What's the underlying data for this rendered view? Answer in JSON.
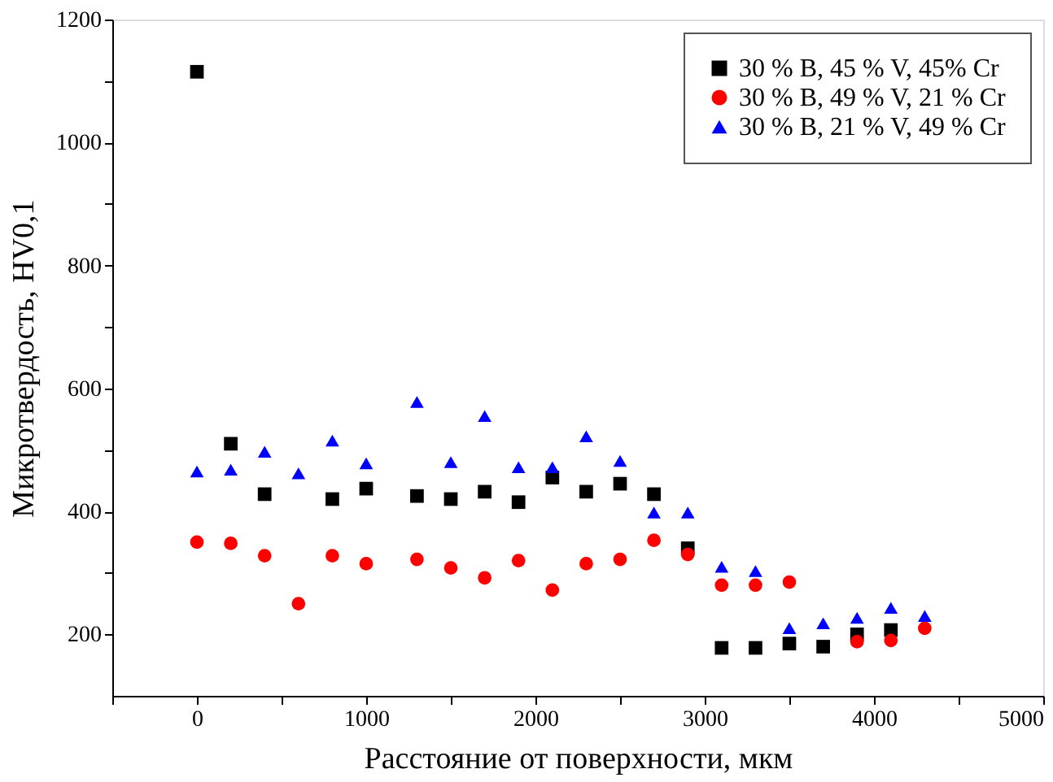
{
  "chart_data": {
    "type": "scatter",
    "xlabel": "Расстояние от поверхности, мкм",
    "ylabel": "Микротвердость, HV0,1",
    "xlim": [
      -500,
      5000
    ],
    "ylim": [
      100,
      1200
    ],
    "xticks": [
      {
        "value": -500,
        "label": null
      },
      0,
      {
        "value": 500,
        "label": null
      },
      1000,
      {
        "value": 1500,
        "label": null
      },
      2000,
      {
        "value": 2500,
        "label": null
      },
      3000,
      {
        "value": 3500,
        "label": null
      },
      4000,
      {
        "value": 4500,
        "label": null
      },
      5000
    ],
    "yticks": [
      200,
      {
        "value": 300,
        "label": null
      },
      400,
      {
        "value": 500,
        "label": null
      },
      600,
      {
        "value": 700,
        "label": null
      },
      800,
      {
        "value": 900,
        "label": null
      },
      1000,
      {
        "value": 1100,
        "label": null
      },
      1200
    ],
    "grid": false,
    "legend": "top right",
    "series": [
      {
        "name": "30 % B, 45 % V, 45% Cr",
        "color": "#000000",
        "marker": "square",
        "x": [
          0,
          200,
          400,
          800,
          1000,
          1300,
          1500,
          1700,
          1900,
          2100,
          2300,
          2500,
          2700,
          2900,
          3100,
          3300,
          3500,
          3700,
          3900,
          4100
        ],
        "values": [
          1115,
          510,
          428,
          420,
          437,
          425,
          420,
          432,
          415,
          455,
          432,
          445,
          428,
          340,
          178,
          178,
          185,
          180,
          200,
          207
        ]
      },
      {
        "name": "30 % B, 49 % V, 21 % Cr",
        "color": "#ff0000",
        "marker": "circle",
        "x": [
          0,
          200,
          400,
          600,
          800,
          1000,
          1300,
          1500,
          1700,
          1900,
          2100,
          2300,
          2500,
          2700,
          2900,
          3100,
          3300,
          3500,
          3900,
          4100,
          4300
        ],
        "values": [
          350,
          348,
          328,
          250,
          328,
          315,
          322,
          308,
          292,
          320,
          272,
          315,
          322,
          353,
          330,
          280,
          280,
          285,
          188,
          190,
          210
        ]
      },
      {
        "name": "30 % B, 21 % V, 49 % Cr",
        "color": "#0000ff",
        "marker": "triangle",
        "x": [
          0,
          200,
          400,
          600,
          800,
          1000,
          1300,
          1500,
          1700,
          1900,
          2100,
          2300,
          2500,
          2700,
          2900,
          3100,
          3300,
          3500,
          3700,
          3900,
          4100,
          4300
        ],
        "values": [
          465,
          468,
          497,
          462,
          515,
          478,
          578,
          480,
          555,
          472,
          472,
          522,
          482,
          398,
          398,
          310,
          303,
          210,
          218,
          227,
          243,
          230
        ]
      }
    ]
  }
}
